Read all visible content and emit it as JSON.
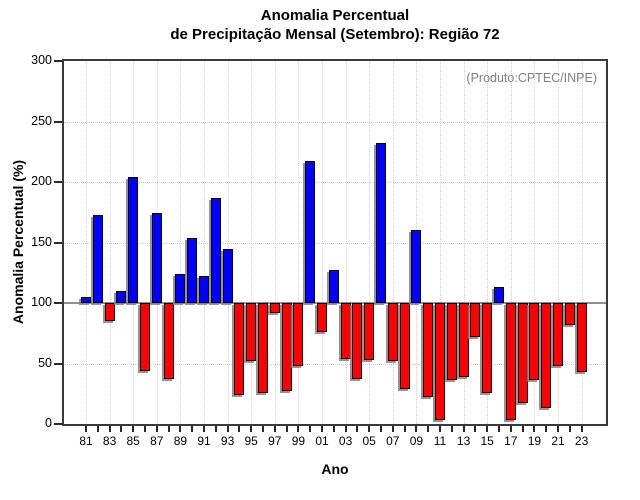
{
  "title": {
    "line1": "Anomalia Percentual",
    "line2": "de Precipitação Mensal (Setembro): Região 72"
  },
  "annotation": "(Produto:CPTEC/INPE)",
  "axes": {
    "ylabel": "Anomalia Percentual (%)",
    "xlabel": "Ano"
  },
  "colors": {
    "above_baseline": "#0000ff",
    "below_baseline": "#ff0000",
    "baseline_line": "#8f8f8f",
    "grid": "#c9c9c9",
    "annotation_text": "#808080"
  },
  "chart_data": {
    "type": "bar",
    "title": "Anomalia Percentual de Precipitação Mensal (Setembro): Região 72",
    "xlabel": "Ano",
    "ylabel": "Anomalia Percentual (%)",
    "ylim": [
      0,
      300
    ],
    "yticks": [
      0,
      50,
      100,
      150,
      200,
      250,
      300
    ],
    "baseline": 100,
    "grid": "dotted, horizontal at 50/150/200/250, vertical at odd years",
    "legend": "none",
    "x": [
      1981,
      1982,
      1983,
      1984,
      1985,
      1986,
      1987,
      1988,
      1989,
      1990,
      1991,
      1992,
      1993,
      1994,
      1995,
      1996,
      1997,
      1998,
      1999,
      2000,
      2001,
      2002,
      2003,
      2004,
      2005,
      2006,
      2007,
      2008,
      2009,
      2010,
      2011,
      2012,
      2013,
      2014,
      2015,
      2016,
      2017,
      2018,
      2019,
      2020,
      2021,
      2022,
      2023
    ],
    "xtick_labels_shown": [
      "81",
      "83",
      "85",
      "87",
      "89",
      "91",
      "93",
      "95",
      "97",
      "99",
      "01",
      "03",
      "05",
      "07",
      "09",
      "11",
      "13",
      "15",
      "17",
      "19",
      "21",
      "23"
    ],
    "values": [
      105,
      173,
      85,
      110,
      204,
      44,
      174,
      37,
      124,
      154,
      122,
      187,
      145,
      24,
      52,
      26,
      92,
      27,
      48,
      217,
      76,
      127,
      54,
      37,
      53,
      232,
      52,
      29,
      160,
      22,
      3,
      36,
      39,
      72,
      26,
      113,
      3,
      17,
      36,
      13,
      48,
      82,
      43
    ]
  }
}
